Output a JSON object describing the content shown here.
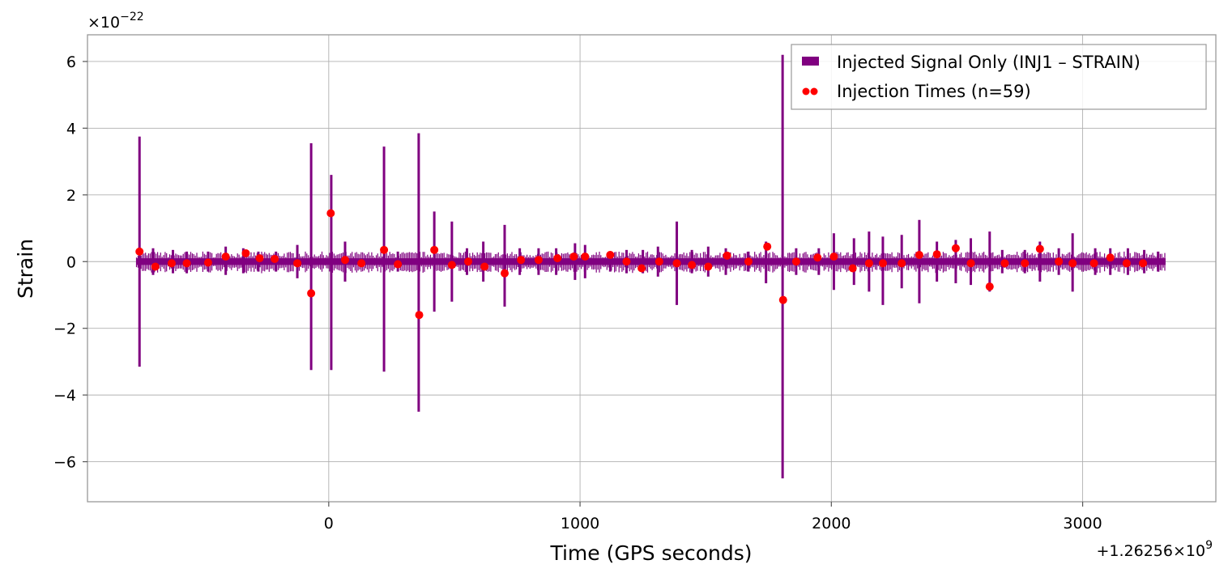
{
  "chart_data": {
    "type": "line",
    "title": "",
    "xlabel": "Time (GPS seconds)",
    "ylabel": "Strain",
    "x_offset_label": "+1.26256×10",
    "x_offset_exp": "9",
    "y_scale_label": "×10",
    "y_scale_exp": "−22",
    "xlim": [
      -960,
      3530
    ],
    "ylim": [
      -7.2,
      6.8
    ],
    "grid": true,
    "legend_position": "top-right",
    "x_ticks": [
      0,
      1000,
      2000,
      3000
    ],
    "x_tick_labels": [
      "0",
      "1000",
      "2000",
      "3000"
    ],
    "y_ticks": [
      -6,
      -4,
      -2,
      0,
      2,
      4,
      6
    ],
    "y_tick_labels": [
      "−6",
      "−4",
      "−2",
      "0",
      "2",
      "4",
      "6"
    ],
    "colors": {
      "signal": "#800080",
      "injection": "#ff0000"
    },
    "signal_range": [
      -765,
      3330
    ],
    "series": [
      {
        "name": "Injected Signal Only (INJ1 – STRAIN)",
        "kind": "signal",
        "baseline_band": [
          -0.1,
          0.1
        ],
        "spikes": [
          [
            -753,
            3.75,
            -3.15
          ],
          [
            -699,
            0.4,
            -0.4
          ],
          [
            -620,
            0.35,
            -0.35
          ],
          [
            -565,
            0.3,
            -0.35
          ],
          [
            -480,
            0.3,
            -0.3
          ],
          [
            -410,
            0.45,
            -0.4
          ],
          [
            -340,
            0.4,
            -0.35
          ],
          [
            -280,
            0.3,
            -0.3
          ],
          [
            -210,
            0.3,
            -0.3
          ],
          [
            -125,
            0.5,
            -0.5
          ],
          [
            -70,
            3.55,
            -3.25
          ],
          [
            10,
            2.6,
            -3.25
          ],
          [
            65,
            0.6,
            -0.6
          ],
          [
            220,
            3.45,
            -3.3
          ],
          [
            275,
            0.3,
            -0.3
          ],
          [
            358,
            3.85,
            -4.5
          ],
          [
            420,
            1.5,
            -1.5
          ],
          [
            490,
            1.2,
            -1.2
          ],
          [
            550,
            0.4,
            -0.4
          ],
          [
            615,
            0.6,
            -0.6
          ],
          [
            700,
            1.1,
            -1.35
          ],
          [
            760,
            0.4,
            -0.4
          ],
          [
            835,
            0.4,
            -0.4
          ],
          [
            905,
            0.4,
            -0.4
          ],
          [
            980,
            0.55,
            -0.55
          ],
          [
            1020,
            0.5,
            -0.5
          ],
          [
            1120,
            0.3,
            -0.3
          ],
          [
            1185,
            0.35,
            -0.35
          ],
          [
            1250,
            0.35,
            -0.35
          ],
          [
            1310,
            0.45,
            -0.45
          ],
          [
            1385,
            1.2,
            -1.3
          ],
          [
            1445,
            0.35,
            -0.35
          ],
          [
            1510,
            0.45,
            -0.45
          ],
          [
            1580,
            0.4,
            -0.4
          ],
          [
            1670,
            0.3,
            -0.3
          ],
          [
            1740,
            0.6,
            -0.65
          ],
          [
            1806,
            6.2,
            -6.5
          ],
          [
            1860,
            0.4,
            -0.4
          ],
          [
            1950,
            0.4,
            -0.4
          ],
          [
            2010,
            0.85,
            -0.85
          ],
          [
            2090,
            0.7,
            -0.7
          ],
          [
            2150,
            0.9,
            -0.9
          ],
          [
            2205,
            0.75,
            -1.3
          ],
          [
            2280,
            0.8,
            -0.8
          ],
          [
            2350,
            1.25,
            -1.25
          ],
          [
            2420,
            0.6,
            -0.6
          ],
          [
            2495,
            0.65,
            -0.65
          ],
          [
            2555,
            0.7,
            -0.7
          ],
          [
            2630,
            0.9,
            -0.9
          ],
          [
            2680,
            0.35,
            -0.35
          ],
          [
            2770,
            0.35,
            -0.35
          ],
          [
            2830,
            0.6,
            -0.6
          ],
          [
            2905,
            0.4,
            -0.4
          ],
          [
            2960,
            0.85,
            -0.9
          ],
          [
            3050,
            0.4,
            -0.4
          ],
          [
            3110,
            0.4,
            -0.4
          ],
          [
            3180,
            0.4,
            -0.4
          ],
          [
            3245,
            0.35,
            -0.35
          ],
          [
            3300,
            0.3,
            -0.3
          ]
        ]
      },
      {
        "name": "Injection Times (n=59)",
        "kind": "markers",
        "points": [
          [
            -753,
            0.3
          ],
          [
            -690,
            -0.15
          ],
          [
            -625,
            -0.05
          ],
          [
            -565,
            -0.05
          ],
          [
            -480,
            -0.03
          ],
          [
            -410,
            0.15
          ],
          [
            -330,
            0.25
          ],
          [
            -275,
            0.1
          ],
          [
            -215,
            0.08
          ],
          [
            -125,
            -0.05
          ],
          [
            -70,
            -0.95
          ],
          [
            8,
            1.45
          ],
          [
            65,
            0.05
          ],
          [
            130,
            -0.05
          ],
          [
            220,
            0.35
          ],
          [
            275,
            -0.08
          ],
          [
            360,
            -1.6
          ],
          [
            420,
            0.35
          ],
          [
            490,
            -0.1
          ],
          [
            555,
            0.0
          ],
          [
            620,
            -0.15
          ],
          [
            700,
            -0.35
          ],
          [
            765,
            0.05
          ],
          [
            835,
            0.05
          ],
          [
            910,
            0.1
          ],
          [
            975,
            0.15
          ],
          [
            1020,
            0.15
          ],
          [
            1120,
            0.2
          ],
          [
            1185,
            0.0
          ],
          [
            1245,
            -0.2
          ],
          [
            1315,
            0.0
          ],
          [
            1385,
            -0.05
          ],
          [
            1445,
            -0.1
          ],
          [
            1510,
            -0.15
          ],
          [
            1585,
            0.18
          ],
          [
            1670,
            0.0
          ],
          [
            1745,
            0.45
          ],
          [
            1808,
            -1.15
          ],
          [
            1860,
            0.0
          ],
          [
            1945,
            0.12
          ],
          [
            2010,
            0.15
          ],
          [
            2085,
            -0.2
          ],
          [
            2150,
            -0.05
          ],
          [
            2205,
            -0.05
          ],
          [
            2280,
            -0.05
          ],
          [
            2350,
            0.2
          ],
          [
            2420,
            0.22
          ],
          [
            2495,
            0.4
          ],
          [
            2555,
            -0.05
          ],
          [
            2630,
            -0.75
          ],
          [
            2690,
            -0.05
          ],
          [
            2770,
            -0.05
          ],
          [
            2830,
            0.38
          ],
          [
            2905,
            0.0
          ],
          [
            2960,
            -0.05
          ],
          [
            3045,
            -0.05
          ],
          [
            3110,
            0.12
          ],
          [
            3175,
            -0.05
          ],
          [
            3240,
            -0.05
          ]
        ]
      }
    ]
  }
}
